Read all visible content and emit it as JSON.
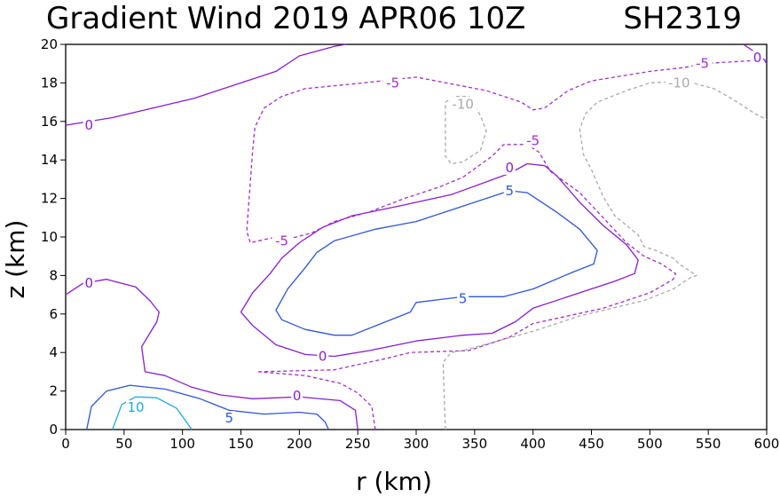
{
  "chart_data": {
    "type": "line",
    "title": "Gradient Wind 2019 APR06 10Z",
    "storm_id": "SH2319",
    "xlabel": "r (km)",
    "ylabel": "z (km)",
    "xlim": [
      0,
      600
    ],
    "ylim": [
      0,
      20
    ],
    "x_ticks": [
      0,
      50,
      100,
      150,
      200,
      250,
      300,
      350,
      400,
      450,
      500,
      550,
      600
    ],
    "y_ticks": [
      0,
      2,
      4,
      6,
      8,
      10,
      12,
      14,
      16,
      18,
      20
    ],
    "grid": false,
    "contour_colors": {
      "10": "#1fa8e0",
      "5": "#2f55d8",
      "0": "#8a1ccf",
      "-5": "#a52ccf",
      "-10": "#aaaaaa"
    },
    "series": [
      {
        "level": "10",
        "dashed": false,
        "points": [
          [
            40,
            0
          ],
          [
            48,
            1.3
          ],
          [
            60,
            1.7
          ],
          [
            78,
            1.65
          ],
          [
            95,
            1.1
          ],
          [
            108,
            0
          ]
        ]
      },
      {
        "level": "5",
        "dashed": false,
        "points": [
          [
            18,
            0
          ],
          [
            22,
            1.2
          ],
          [
            35,
            2.0
          ],
          [
            55,
            2.3
          ],
          [
            85,
            2.1
          ],
          [
            115,
            1.6
          ],
          [
            140,
            1.0
          ],
          [
            170,
            0.8
          ],
          [
            200,
            0.9
          ],
          [
            215,
            0.8
          ],
          [
            222,
            0.4
          ],
          [
            225,
            0
          ]
        ]
      },
      {
        "level": "0",
        "dashed": false,
        "points": [
          [
            250,
            0
          ],
          [
            248,
            1.0
          ],
          [
            235,
            1.5
          ],
          [
            200,
            1.7
          ],
          [
            160,
            1.6
          ],
          [
            132,
            1.8
          ],
          [
            108,
            2.2
          ],
          [
            85,
            2.8
          ],
          [
            68,
            3.0
          ],
          [
            65,
            4.3
          ],
          [
            78,
            5.6
          ],
          [
            80,
            6.1
          ],
          [
            72,
            6.7
          ],
          [
            60,
            7.4
          ],
          [
            35,
            7.8
          ],
          [
            15,
            7.6
          ],
          [
            0,
            7.0
          ]
        ]
      },
      {
        "level": "0",
        "dashed": false,
        "points": [
          [
            0,
            15.8
          ],
          [
            40,
            16.2
          ],
          [
            75,
            16.7
          ],
          [
            110,
            17.2
          ],
          [
            135,
            17.7
          ],
          [
            150,
            18.0
          ],
          [
            165,
            18.3
          ],
          [
            180,
            18.6
          ],
          [
            200,
            19.4
          ],
          [
            230,
            19.9
          ],
          [
            240,
            20
          ]
        ]
      },
      {
        "level": "0",
        "dashed": false,
        "points": [
          [
            580,
            20
          ],
          [
            590,
            19.6
          ],
          [
            598,
            19.2
          ],
          [
            600,
            19.0
          ]
        ]
      },
      {
        "level": "0",
        "dashed": false,
        "points": [
          [
            230,
            3.8
          ],
          [
            205,
            3.9
          ],
          [
            180,
            4.4
          ],
          [
            160,
            5.4
          ],
          [
            150,
            6.1
          ],
          [
            160,
            7.1
          ],
          [
            175,
            8.1
          ],
          [
            185,
            8.9
          ],
          [
            200,
            9.7
          ],
          [
            220,
            10.5
          ],
          [
            245,
            11.1
          ],
          [
            285,
            11.6
          ],
          [
            330,
            12.2
          ],
          [
            380,
            13.3
          ],
          [
            395,
            13.8
          ],
          [
            410,
            13.7
          ],
          [
            420,
            13.2
          ],
          [
            440,
            11.8
          ],
          [
            460,
            10.6
          ],
          [
            480,
            9.6
          ],
          [
            490,
            8.8
          ],
          [
            487,
            8.1
          ],
          [
            470,
            7.7
          ],
          [
            440,
            7.1
          ],
          [
            400,
            6.3
          ],
          [
            385,
            5.6
          ],
          [
            365,
            5.0
          ],
          [
            340,
            4.9
          ],
          [
            300,
            4.6
          ],
          [
            260,
            4.1
          ],
          [
            230,
            3.8
          ]
        ]
      },
      {
        "level": "5",
        "dashed": false,
        "points": [
          [
            230,
            4.9
          ],
          [
            205,
            5.2
          ],
          [
            185,
            5.7
          ],
          [
            180,
            6.2
          ],
          [
            190,
            7.3
          ],
          [
            205,
            8.4
          ],
          [
            215,
            9.2
          ],
          [
            230,
            9.8
          ],
          [
            265,
            10.4
          ],
          [
            300,
            10.8
          ],
          [
            340,
            11.6
          ],
          [
            380,
            12.4
          ],
          [
            395,
            12.3
          ],
          [
            420,
            11.3
          ],
          [
            440,
            10.4
          ],
          [
            455,
            9.3
          ],
          [
            452,
            8.6
          ],
          [
            435,
            8.2
          ],
          [
            400,
            7.3
          ],
          [
            375,
            6.9
          ],
          [
            340,
            6.9
          ],
          [
            300,
            6.6
          ],
          [
            295,
            6.1
          ],
          [
            270,
            5.5
          ],
          [
            245,
            4.9
          ],
          [
            230,
            4.9
          ]
        ]
      },
      {
        "level": "-5",
        "dashed": true,
        "points": [
          [
            265,
            0
          ],
          [
            262,
            1.2
          ],
          [
            250,
            1.9
          ],
          [
            235,
            2.4
          ],
          [
            205,
            2.8
          ],
          [
            165,
            3.0
          ]
        ]
      },
      {
        "level": "-5",
        "dashed": true,
        "points": [
          [
            165,
            3.0
          ],
          [
            230,
            3.1
          ],
          [
            275,
            3.7
          ],
          [
            295,
            4.0
          ],
          [
            345,
            4.1
          ],
          [
            380,
            4.8
          ],
          [
            400,
            5.5
          ],
          [
            460,
            6.3
          ],
          [
            500,
            7.1
          ],
          [
            520,
            7.8
          ],
          [
            522,
            8.1
          ],
          [
            510,
            8.6
          ],
          [
            495,
            9.0
          ],
          [
            480,
            9.7
          ],
          [
            460,
            11.0
          ],
          [
            440,
            12.3
          ],
          [
            415,
            13.4
          ],
          [
            405,
            14.4
          ],
          [
            395,
            14.8
          ],
          [
            375,
            14.8
          ],
          [
            365,
            14.2
          ],
          [
            340,
            13.1
          ],
          [
            320,
            12.6
          ],
          [
            315,
            12.5
          ],
          [
            290,
            12.0
          ],
          [
            260,
            11.3
          ],
          [
            230,
            10.8
          ],
          [
            210,
            10.2
          ],
          [
            185,
            9.8
          ],
          [
            180,
            10.0
          ],
          [
            158,
            9.7
          ],
          [
            155,
            10.3
          ],
          [
            160,
            14.5
          ],
          [
            162,
            15.7
          ],
          [
            170,
            16.7
          ],
          [
            185,
            17.3
          ],
          [
            205,
            17.7
          ],
          [
            255,
            18.0
          ],
          [
            300,
            18.3
          ],
          [
            360,
            17.6
          ],
          [
            390,
            17.0
          ],
          [
            400,
            16.6
          ],
          [
            410,
            16.7
          ],
          [
            430,
            17.6
          ],
          [
            450,
            18.1
          ],
          [
            500,
            18.6
          ],
          [
            530,
            18.8
          ],
          [
            545,
            19.0
          ],
          [
            600,
            19.2
          ]
        ]
      },
      {
        "level": "-10",
        "dashed": true,
        "points": [
          [
            325,
            0
          ],
          [
            323,
            3.5
          ],
          [
            330,
            4.0
          ],
          [
            340,
            4.1
          ],
          [
            400,
            5.1
          ],
          [
            440,
            5.9
          ],
          [
            495,
            6.7
          ],
          [
            520,
            7.3
          ],
          [
            535,
            7.9
          ],
          [
            540,
            8.0
          ],
          [
            525,
            8.6
          ],
          [
            520,
            8.9
          ],
          [
            505,
            9.3
          ],
          [
            495,
            9.5
          ],
          [
            490,
            10.1
          ],
          [
            470,
            11.1
          ],
          [
            460,
            12.1
          ],
          [
            450,
            13.5
          ],
          [
            443,
            14.3
          ],
          [
            440,
            15.6
          ],
          [
            445,
            16.4
          ],
          [
            455,
            17.0
          ],
          [
            480,
            17.6
          ],
          [
            500,
            18.0
          ],
          [
            530,
            18.1
          ],
          [
            555,
            17.7
          ],
          [
            575,
            17.0
          ],
          [
            590,
            16.4
          ],
          [
            600,
            16.1
          ]
        ]
      },
      {
        "level": "-10",
        "dashed": true,
        "points": [
          [
            325,
            17.0
          ],
          [
            333,
            17.3
          ],
          [
            345,
            17.3
          ],
          [
            355,
            16.3
          ],
          [
            360,
            15.5
          ],
          [
            355,
            14.5
          ],
          [
            340,
            13.9
          ],
          [
            330,
            13.8
          ],
          [
            325,
            14.2
          ],
          [
            325,
            17.0
          ]
        ]
      }
    ],
    "labels": [
      {
        "text": "10",
        "x": 60,
        "y": 1.15,
        "level": "10"
      },
      {
        "text": "5",
        "x": 140,
        "y": 0.6,
        "level": "5"
      },
      {
        "text": "0",
        "x": 198,
        "y": 1.75,
        "level": "0"
      },
      {
        "text": "0",
        "x": 20,
        "y": 7.6,
        "level": "0"
      },
      {
        "text": "0",
        "x": 20,
        "y": 15.8,
        "level": "0"
      },
      {
        "text": "0",
        "x": 592,
        "y": 19.3,
        "level": "0"
      },
      {
        "text": "0",
        "x": 220,
        "y": 3.8,
        "level": "0"
      },
      {
        "text": "0",
        "x": 380,
        "y": 13.6,
        "level": "0"
      },
      {
        "text": "5",
        "x": 380,
        "y": 12.4,
        "level": "5"
      },
      {
        "text": "5",
        "x": 340,
        "y": 6.8,
        "level": "5"
      },
      {
        "text": "-5",
        "x": 185,
        "y": 9.8,
        "level": "-5"
      },
      {
        "text": "-5",
        "x": 280,
        "y": 18.0,
        "level": "-5"
      },
      {
        "text": "-5",
        "x": 400,
        "y": 15.0,
        "level": "-5"
      },
      {
        "text": "-5",
        "x": 545,
        "y": 19.0,
        "level": "-5"
      },
      {
        "text": "-10",
        "x": 340,
        "y": 16.9,
        "level": "-10"
      },
      {
        "text": "-10",
        "x": 525,
        "y": 18.0,
        "level": "-10"
      }
    ]
  }
}
